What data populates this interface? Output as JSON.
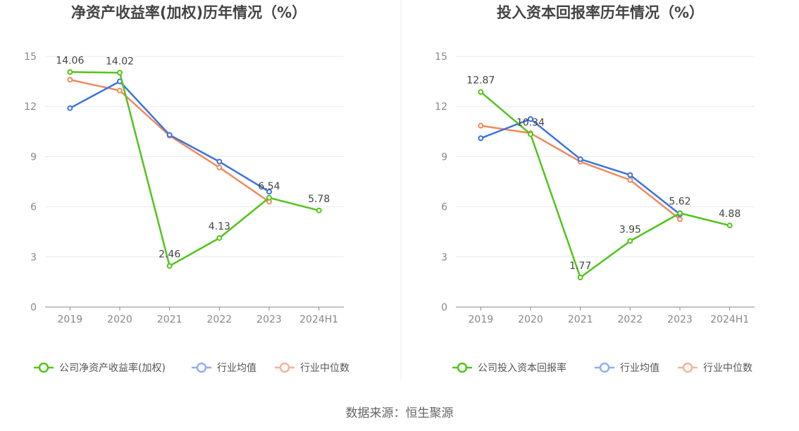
{
  "colors": {
    "company": "#52c41a",
    "industry_avg": "#3b74dc",
    "industry_median": "#f08a5d",
    "legend_avg": "#8fb0ef",
    "legend_median": "#f5b49a"
  },
  "source": "数据来源：恒生聚源",
  "chart_data": [
    {
      "type": "line",
      "title": "净资产收益率(加权)历年情况（%）",
      "categories": [
        "2019",
        "2020",
        "2021",
        "2022",
        "2023",
        "2024H1"
      ],
      "ylim": [
        0,
        15
      ],
      "yticks": [
        "0",
        "3",
        "6",
        "9",
        "12",
        "15"
      ],
      "grid": true,
      "legend_position": "bottom",
      "series": [
        {
          "name": "公司净资产收益率(加权)",
          "values": [
            14.06,
            14.02,
            2.46,
            4.13,
            6.54,
            5.78
          ],
          "labels": [
            "14.06",
            "14.02",
            "2.46",
            "4.13",
            "6.54",
            "5.78"
          ]
        },
        {
          "name": "行业均值",
          "values": [
            11.9,
            13.5,
            10.3,
            8.7,
            6.9,
            null
          ]
        },
        {
          "name": "行业中位数",
          "values": [
            13.6,
            12.95,
            10.25,
            8.35,
            6.3,
            null
          ]
        }
      ]
    },
    {
      "type": "line",
      "title": "投入资本回报率历年情况（%）",
      "categories": [
        "2019",
        "2020",
        "2021",
        "2022",
        "2023",
        "2024H1"
      ],
      "ylim": [
        0,
        15
      ],
      "yticks": [
        "0",
        "3",
        "6",
        "9",
        "12",
        "15"
      ],
      "grid": true,
      "legend_position": "bottom",
      "series": [
        {
          "name": "公司投入资本回报率",
          "values": [
            12.87,
            10.34,
            1.77,
            3.95,
            5.62,
            4.88
          ],
          "labels": [
            "12.87",
            "10.34",
            "1.77",
            "3.95",
            "5.62",
            "4.88"
          ]
        },
        {
          "name": "行业均值",
          "values": [
            10.1,
            11.25,
            8.85,
            7.9,
            5.55,
            null
          ]
        },
        {
          "name": "行业中位数",
          "values": [
            10.85,
            10.4,
            8.7,
            7.6,
            5.25,
            null
          ]
        }
      ]
    }
  ]
}
